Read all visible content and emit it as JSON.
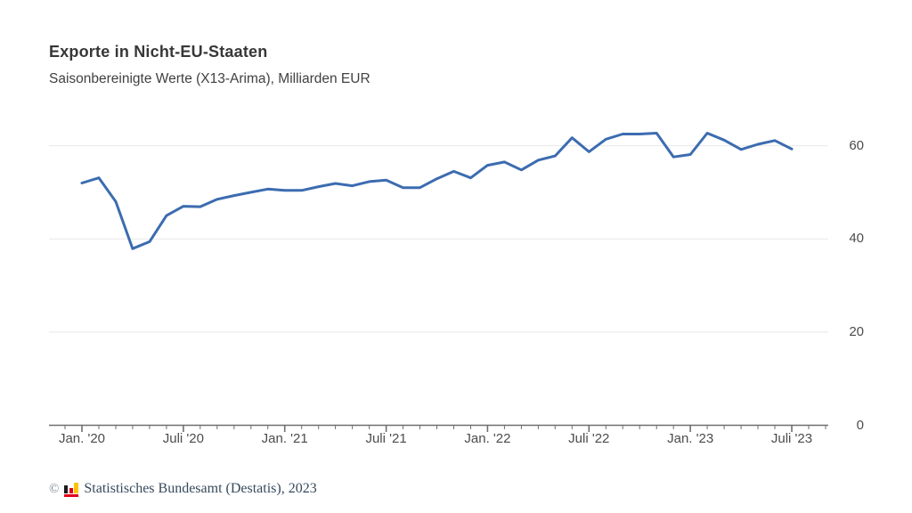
{
  "header": {
    "title": "Exporte in Nicht-EU-Staaten",
    "subtitle": "Saisonbereinigte Werte (X13-Arima), Milliarden EUR"
  },
  "footer": {
    "copyright_symbol": "©",
    "source_text": "Statistisches Bundesamt (Destatis), 2023",
    "logo_icon": "destatis-bar-chart-icon",
    "logo_colors": {
      "bar1": "#1a1a1a",
      "bar2": "#e2001a",
      "bar3": "#fdc300",
      "baseline": "#e2001a"
    }
  },
  "chart_data": {
    "type": "line",
    "title": "Exporte in Nicht-EU-Staaten",
    "subtitle": "Saisonbereinigte Werte (X13-Arima), Milliarden EUR",
    "ylabel": "Milliarden EUR",
    "xlabel": "",
    "x": [
      "2020-01",
      "2020-02",
      "2020-03",
      "2020-04",
      "2020-05",
      "2020-06",
      "2020-07",
      "2020-08",
      "2020-09",
      "2020-10",
      "2020-11",
      "2020-12",
      "2021-01",
      "2021-02",
      "2021-03",
      "2021-04",
      "2021-05",
      "2021-06",
      "2021-07",
      "2021-08",
      "2021-09",
      "2021-10",
      "2021-11",
      "2021-12",
      "2022-01",
      "2022-02",
      "2022-03",
      "2022-04",
      "2022-05",
      "2022-06",
      "2022-07",
      "2022-08",
      "2022-09",
      "2022-10",
      "2022-11",
      "2022-12",
      "2023-01",
      "2023-02",
      "2023-03",
      "2023-04",
      "2023-05",
      "2023-06",
      "2023-07"
    ],
    "values": [
      52.0,
      53.1,
      48.0,
      37.9,
      39.4,
      45.0,
      47.0,
      46.9,
      48.5,
      49.3,
      50.0,
      50.7,
      50.4,
      50.4,
      51.2,
      51.9,
      51.4,
      52.3,
      52.6,
      51.0,
      51.0,
      52.9,
      54.5,
      53.1,
      55.8,
      56.5,
      54.8,
      56.9,
      57.8,
      61.7,
      58.7,
      61.4,
      62.5,
      62.5,
      62.7,
      57.6,
      58.1,
      62.7,
      61.2,
      59.2,
      60.3,
      61.1,
      59.3
    ],
    "x_major_ticks": [
      {
        "label": "Jan. '20",
        "month_index": 0
      },
      {
        "label": "Juli '20",
        "month_index": 6
      },
      {
        "label": "Jan. '21",
        "month_index": 12
      },
      {
        "label": "Juli '21",
        "month_index": 18
      },
      {
        "label": "Jan. '22",
        "month_index": 24
      },
      {
        "label": "Juli '22",
        "month_index": 30
      },
      {
        "label": "Jan. '23",
        "month_index": 36
      },
      {
        "label": "Juli '23",
        "month_index": 42
      }
    ],
    "x_minor_tick_interval_months": 1,
    "y_ticks": [
      0,
      20,
      40,
      60
    ],
    "ylim": [
      0,
      64
    ],
    "grid": true,
    "y_axis_side": "right",
    "legend": "none",
    "line_color": "#3c6cb0",
    "grid_color": "#e8e8e8",
    "axis_color": "#6f6f6f"
  }
}
